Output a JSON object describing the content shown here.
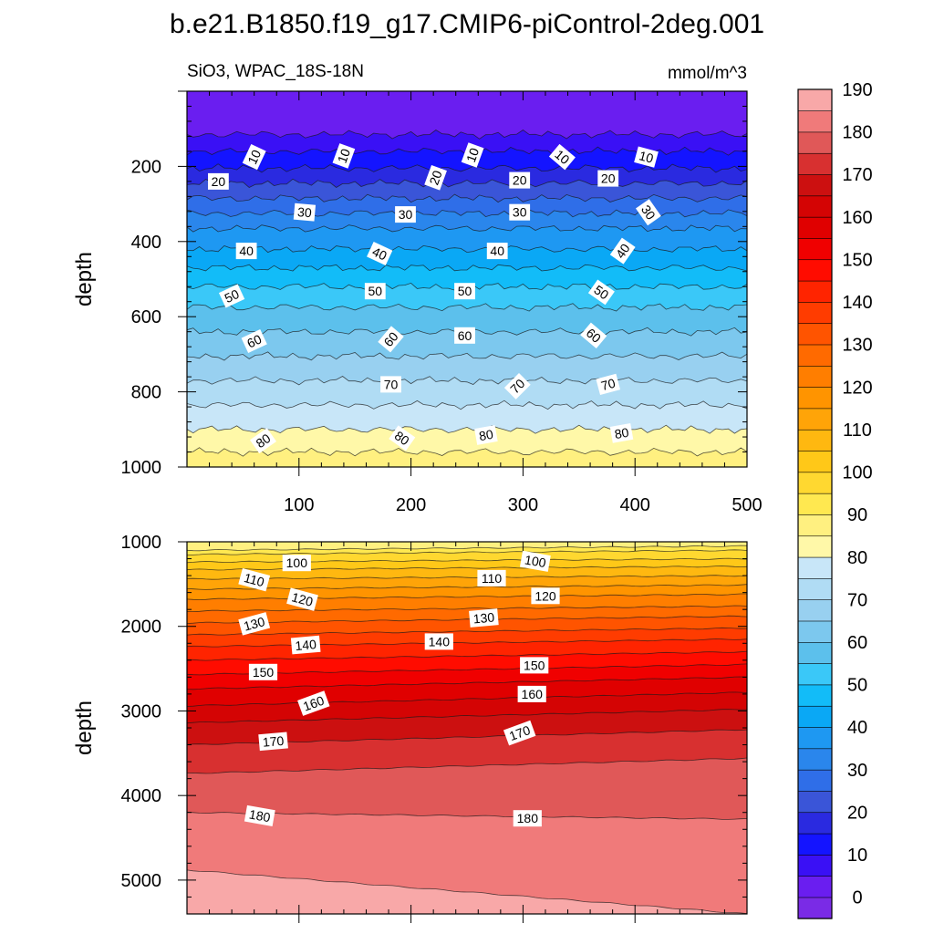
{
  "figure": {
    "title": "b.e21.B1850.f19_g17.CMIP6-piControl-2deg.001",
    "subtitle_left": "SiO3, WPAC_18S-18N",
    "subtitle_right": "mmol/m^3"
  },
  "colorbar": {
    "colors": [
      "#7a2be6",
      "#6a1ef0",
      "#3a10f5",
      "#1414ff",
      "#2a2ae0",
      "#3a55d8",
      "#2f6ee8",
      "#2a86ec",
      "#1e98f2",
      "#0aa8f5",
      "#12bcf8",
      "#3ac8f8",
      "#5cc0ec",
      "#7cc8ee",
      "#98d0f0",
      "#b0dcf4",
      "#c8e6f8",
      "#fff8a8",
      "#fff080",
      "#ffe850",
      "#ffd830",
      "#ffc818",
      "#ffb810",
      "#ffa408",
      "#ff9400",
      "#ff7e00",
      "#ff6a00",
      "#ff5400",
      "#ff3c00",
      "#ff2400",
      "#ff0c00",
      "#f00000",
      "#e00000",
      "#d40404",
      "#cc1010",
      "#d83030",
      "#e05858",
      "#f07a7a",
      "#f8a8a8"
    ],
    "tick_labels": [
      "0",
      "10",
      "20",
      "30",
      "40",
      "50",
      "60",
      "70",
      "80",
      "90",
      "100",
      "110",
      "120",
      "130",
      "140",
      "150",
      "160",
      "170",
      "180",
      "190"
    ]
  },
  "chart_data": [
    {
      "type": "contour",
      "name": "upper panel",
      "ylabel": "depth",
      "xlim": [
        0,
        500
      ],
      "ylim": [
        1000,
        0
      ],
      "x_ticks": [
        100,
        200,
        300,
        400,
        500
      ],
      "x_tick_labels": [
        "100",
        "200",
        "300",
        "400",
        "500"
      ],
      "y_ticks": [
        200,
        400,
        600,
        800,
        1000
      ],
      "y_tick_labels": [
        "200",
        "400",
        "600",
        "800",
        "1000"
      ],
      "levels": [
        {
          "value": 5,
          "depth": 115
        },
        {
          "value": 10,
          "depth": 160
        },
        {
          "value": 15,
          "depth": 205
        },
        {
          "value": 20,
          "depth": 245
        },
        {
          "value": 25,
          "depth": 285
        },
        {
          "value": 30,
          "depth": 325
        },
        {
          "value": 35,
          "depth": 365
        },
        {
          "value": 40,
          "depth": 420
        },
        {
          "value": 45,
          "depth": 470
        },
        {
          "value": 50,
          "depth": 520
        },
        {
          "value": 55,
          "depth": 575
        },
        {
          "value": 60,
          "depth": 640
        },
        {
          "value": 65,
          "depth": 705
        },
        {
          "value": 70,
          "depth": 770
        },
        {
          "value": 75,
          "depth": 835
        },
        {
          "value": 80,
          "depth": 900
        },
        {
          "value": 85,
          "depth": 960
        }
      ],
      "contour_labels": [
        {
          "text": "10",
          "x": 60,
          "depth": 175,
          "angle": -65
        },
        {
          "text": "10",
          "x": 140,
          "depth": 172,
          "angle": -70
        },
        {
          "text": "10",
          "x": 255,
          "depth": 170,
          "angle": -70
        },
        {
          "text": "10",
          "x": 335,
          "depth": 175,
          "angle": 40
        },
        {
          "text": "10",
          "x": 410,
          "depth": 175,
          "angle": 15
        },
        {
          "text": "20",
          "x": 28,
          "depth": 240,
          "angle": 0
        },
        {
          "text": "20",
          "x": 222,
          "depth": 230,
          "angle": -70
        },
        {
          "text": "20",
          "x": 297,
          "depth": 237,
          "angle": 0
        },
        {
          "text": "20",
          "x": 376,
          "depth": 232,
          "angle": 0
        },
        {
          "text": "30",
          "x": 105,
          "depth": 322,
          "angle": 5
        },
        {
          "text": "30",
          "x": 195,
          "depth": 328,
          "angle": 0
        },
        {
          "text": "30",
          "x": 297,
          "depth": 322,
          "angle": 0
        },
        {
          "text": "30",
          "x": 412,
          "depth": 322,
          "angle": 55
        },
        {
          "text": "40",
          "x": 53,
          "depth": 425,
          "angle": 0
        },
        {
          "text": "40",
          "x": 172,
          "depth": 432,
          "angle": 25
        },
        {
          "text": "40",
          "x": 277,
          "depth": 425,
          "angle": 0
        },
        {
          "text": "40",
          "x": 389,
          "depth": 425,
          "angle": -55
        },
        {
          "text": "50",
          "x": 40,
          "depth": 545,
          "angle": -25
        },
        {
          "text": "50",
          "x": 168,
          "depth": 532,
          "angle": 0
        },
        {
          "text": "50",
          "x": 248,
          "depth": 532,
          "angle": 0
        },
        {
          "text": "50",
          "x": 370,
          "depth": 535,
          "angle": 35
        },
        {
          "text": "60",
          "x": 60,
          "depth": 665,
          "angle": -25
        },
        {
          "text": "60",
          "x": 182,
          "depth": 660,
          "angle": -50
        },
        {
          "text": "60",
          "x": 248,
          "depth": 650,
          "angle": 0
        },
        {
          "text": "60",
          "x": 363,
          "depth": 650,
          "angle": 40
        },
        {
          "text": "70",
          "x": 182,
          "depth": 780,
          "angle": 0
        },
        {
          "text": "70",
          "x": 295,
          "depth": 785,
          "angle": -45
        },
        {
          "text": "70",
          "x": 376,
          "depth": 780,
          "angle": -15
        },
        {
          "text": "80",
          "x": 68,
          "depth": 930,
          "angle": -35
        },
        {
          "text": "80",
          "x": 192,
          "depth": 923,
          "angle": 35
        },
        {
          "text": "80",
          "x": 267,
          "depth": 915,
          "angle": -10
        },
        {
          "text": "80",
          "x": 388,
          "depth": 910,
          "angle": -10
        }
      ]
    },
    {
      "type": "contour",
      "name": "lower panel",
      "ylabel": "depth",
      "xlim": [
        0,
        500
      ],
      "ylim": [
        5400,
        1000
      ],
      "y_ticks": [
        1000,
        2000,
        3000,
        4000,
        5000
      ],
      "y_tick_labels": [
        "1000",
        "2000",
        "3000",
        "4000",
        "5000"
      ],
      "levels": [
        {
          "value": 90,
          "depth_left": 1100,
          "depth_right": 1050
        },
        {
          "value": 95,
          "depth_left": 1150,
          "depth_right": 1100
        },
        {
          "value": 100,
          "depth_left": 1240,
          "depth_right": 1200
        },
        {
          "value": 105,
          "depth_left": 1330,
          "depth_right": 1290
        },
        {
          "value": 110,
          "depth_left": 1440,
          "depth_right": 1400
        },
        {
          "value": 115,
          "depth_left": 1560,
          "depth_right": 1510
        },
        {
          "value": 120,
          "depth_left": 1680,
          "depth_right": 1620
        },
        {
          "value": 125,
          "depth_left": 1820,
          "depth_right": 1760
        },
        {
          "value": 130,
          "depth_left": 1960,
          "depth_right": 1880
        },
        {
          "value": 135,
          "depth_left": 2100,
          "depth_right": 2020
        },
        {
          "value": 140,
          "depth_left": 2240,
          "depth_right": 2150
        },
        {
          "value": 145,
          "depth_left": 2400,
          "depth_right": 2300
        },
        {
          "value": 150,
          "depth_left": 2570,
          "depth_right": 2450
        },
        {
          "value": 155,
          "depth_left": 2740,
          "depth_right": 2600
        },
        {
          "value": 160,
          "depth_left": 2940,
          "depth_right": 2780
        },
        {
          "value": 165,
          "depth_left": 3140,
          "depth_right": 2980
        },
        {
          "value": 170,
          "depth_left": 3400,
          "depth_right": 3220
        },
        {
          "value": 175,
          "depth_left": 3740,
          "depth_right": 3560
        },
        {
          "value": 180,
          "depth_left": 4200,
          "depth_right": 4280
        },
        {
          "value": 185,
          "depth_left": 4880,
          "depth_right": 5400
        }
      ],
      "contour_labels": [
        {
          "text": "100",
          "x": 98,
          "depth": 1250,
          "angle": 0
        },
        {
          "text": "100",
          "x": 311,
          "depth": 1230,
          "angle": 10
        },
        {
          "text": "110",
          "x": 60,
          "depth": 1450,
          "angle": 15
        },
        {
          "text": "110",
          "x": 272,
          "depth": 1430,
          "angle": 0
        },
        {
          "text": "120",
          "x": 103,
          "depth": 1680,
          "angle": 15
        },
        {
          "text": "120",
          "x": 320,
          "depth": 1640,
          "angle": 0
        },
        {
          "text": "130",
          "x": 60,
          "depth": 1970,
          "angle": -15
        },
        {
          "text": "130",
          "x": 265,
          "depth": 1900,
          "angle": -5
        },
        {
          "text": "140",
          "x": 106,
          "depth": 2220,
          "angle": -5
        },
        {
          "text": "140",
          "x": 225,
          "depth": 2180,
          "angle": 0
        },
        {
          "text": "150",
          "x": 68,
          "depth": 2540,
          "angle": 0
        },
        {
          "text": "150",
          "x": 310,
          "depth": 2460,
          "angle": 0
        },
        {
          "text": "160",
          "x": 113,
          "depth": 2910,
          "angle": -20
        },
        {
          "text": "160",
          "x": 308,
          "depth": 2800,
          "angle": 0
        },
        {
          "text": "170",
          "x": 77,
          "depth": 3360,
          "angle": -5
        },
        {
          "text": "170",
          "x": 297,
          "depth": 3260,
          "angle": -20
        },
        {
          "text": "180",
          "x": 65,
          "depth": 4240,
          "angle": 10
        },
        {
          "text": "180",
          "x": 304,
          "depth": 4270,
          "angle": 0
        }
      ]
    }
  ]
}
